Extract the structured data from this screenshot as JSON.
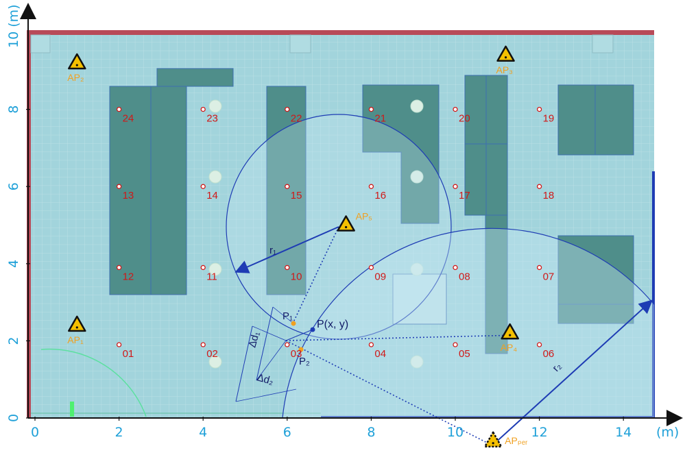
{
  "axes": {
    "x_ticks": [
      "0",
      "2",
      "4",
      "6",
      "8",
      "10",
      "12",
      "14"
    ],
    "x_unit": "(m)",
    "y_ticks": [
      "0",
      "2",
      "4",
      "6",
      "8"
    ],
    "y_top_label": "10 (m)"
  },
  "colors": {
    "floor": "#a2d4dc",
    "grid": "#c7e6ea",
    "furniture": "#4d8c88",
    "wall": "#b84a58",
    "circle": "#1e3cb4",
    "axis_text": "#1ea0d8",
    "point_label": "#d01818",
    "ap_label": "#f0a020"
  },
  "reference_points": [
    {
      "label": "24",
      "x": 2.0,
      "y": 8.0
    },
    {
      "label": "23",
      "x": 4.0,
      "y": 8.0
    },
    {
      "label": "22",
      "x": 6.0,
      "y": 8.0
    },
    {
      "label": "21",
      "x": 8.0,
      "y": 8.0
    },
    {
      "label": "20",
      "x": 10.0,
      "y": 8.0
    },
    {
      "label": "19",
      "x": 12.0,
      "y": 8.0
    },
    {
      "label": "13",
      "x": 2.0,
      "y": 6.0
    },
    {
      "label": "14",
      "x": 4.0,
      "y": 6.0
    },
    {
      "label": "15",
      "x": 6.0,
      "y": 6.0
    },
    {
      "label": "16",
      "x": 8.0,
      "y": 6.0
    },
    {
      "label": "17",
      "x": 10.0,
      "y": 6.0
    },
    {
      "label": "18",
      "x": 12.0,
      "y": 6.0
    },
    {
      "label": "12",
      "x": 2.0,
      "y": 3.9
    },
    {
      "label": "11",
      "x": 4.0,
      "y": 3.9
    },
    {
      "label": "10",
      "x": 6.0,
      "y": 3.9
    },
    {
      "label": "09",
      "x": 8.0,
      "y": 3.9
    },
    {
      "label": "08",
      "x": 10.0,
      "y": 3.9
    },
    {
      "label": "07",
      "x": 12.0,
      "y": 3.9
    },
    {
      "label": "01",
      "x": 2.0,
      "y": 1.9
    },
    {
      "label": "02",
      "x": 4.0,
      "y": 1.9
    },
    {
      "label": "03",
      "x": 6.0,
      "y": 1.9
    },
    {
      "label": "04",
      "x": 8.0,
      "y": 1.9
    },
    {
      "label": "05",
      "x": 10.0,
      "y": 1.9
    },
    {
      "label": "06",
      "x": 12.0,
      "y": 1.9
    }
  ],
  "access_points": [
    {
      "label": "AP₁",
      "x": 1.0,
      "y": 2.4
    },
    {
      "label": "AP₂",
      "x": 1.0,
      "y": 9.2
    },
    {
      "label": "AP₃",
      "x": 11.2,
      "y": 9.4
    },
    {
      "label": "AP₄",
      "x": 11.3,
      "y": 2.2
    },
    {
      "label": "AP₅",
      "x": 7.4,
      "y": 5.0
    },
    {
      "label": "APₚₑᵣ",
      "x": 10.9,
      "y": -0.6
    }
  ],
  "geometry": {
    "r1_label": "r₁",
    "r2_label": "r₂",
    "p1_label": "P₁",
    "p2_label": "P₂",
    "p_label": "P(x, y)",
    "dd1_label": "Δd₁",
    "dd2_label": "Δd₂",
    "r1_value": 2.7,
    "r2_value": 5.5
  }
}
